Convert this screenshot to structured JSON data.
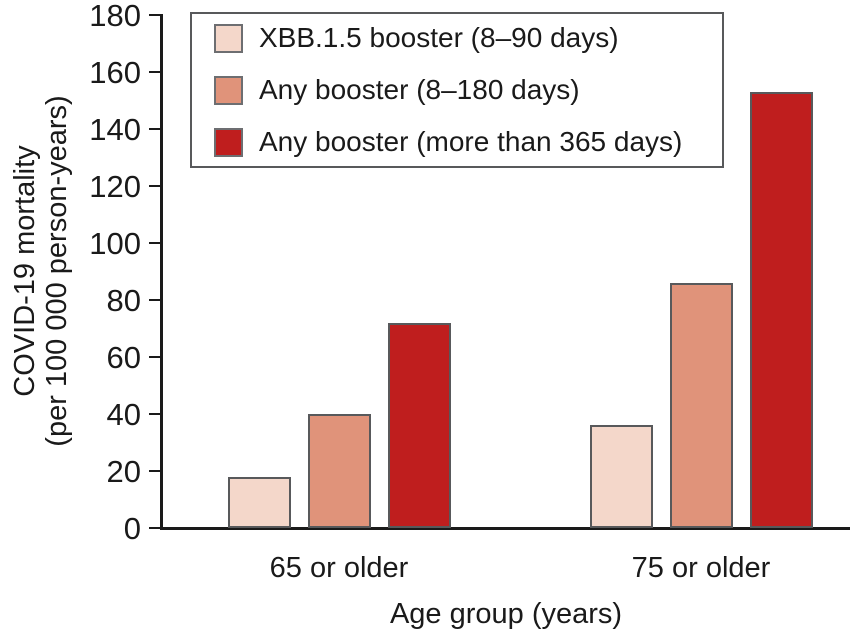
{
  "figure": {
    "y_axis_label_line1": "COVID-19 mortality",
    "y_axis_label_line2": "(per 100 000 person-years)",
    "x_axis_label": "Age group (years)"
  },
  "chart_data": {
    "type": "bar",
    "title": "",
    "categories": [
      "65 or older",
      "75 or older"
    ],
    "series": [
      {
        "name": "XBB.1.5 booster (8–90 days)",
        "color": "#f4d7ca",
        "values": [
          18,
          36
        ]
      },
      {
        "name": "Any booster (8–180 days)",
        "color": "#e0937a",
        "values": [
          40,
          86
        ]
      },
      {
        "name": "Any booster (more than 365 days)",
        "color": "#bf1e1e",
        "values": [
          72,
          153
        ]
      }
    ],
    "xlabel": "Age group (years)",
    "ylabel": "COVID-19 mortality (per 100 000 person-years)",
    "ylim": [
      0,
      180
    ],
    "yticks": [
      0,
      20,
      40,
      60,
      80,
      100,
      120,
      140,
      160,
      180
    ],
    "grid": false,
    "legend_position": "upper left",
    "colors": {
      "bar_outline": "#58595b",
      "axis": "#1a1a1a",
      "background": "#ffffff"
    }
  }
}
